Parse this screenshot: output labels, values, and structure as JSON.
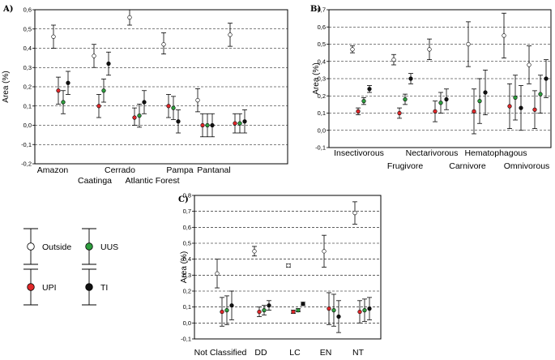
{
  "chart_data": [
    {
      "type": "scatter",
      "panel_label": "A)",
      "ylabel": "Area (%)",
      "ylim": [
        -0.2,
        0.6
      ],
      "yticks": [
        "-0,2",
        "-0,1",
        "0,0",
        "0,1",
        "0,2",
        "0,3",
        "0,4",
        "0,5",
        "0,6"
      ],
      "grid": "horizontal-dashed",
      "categories": [
        "Amazon",
        "Caatinga",
        "Cerrado",
        "Atlantic Forest",
        "Pampa",
        "Pantanal"
      ],
      "series": [
        {
          "name": "Outside",
          "values": [
            0.46,
            0.36,
            0.56,
            0.42,
            0.13,
            0.47
          ],
          "lower": [
            0.4,
            0.3,
            0.52,
            0.37,
            0.07,
            0.41
          ],
          "upper": [
            0.52,
            0.42,
            0.6,
            0.48,
            0.19,
            0.53
          ]
        },
        {
          "name": "UPI",
          "values": [
            0.18,
            0.1,
            0.04,
            0.1,
            0.0,
            0.01
          ],
          "lower": [
            0.11,
            0.04,
            0.0,
            0.04,
            -0.06,
            -0.04
          ],
          "upper": [
            0.25,
            0.16,
            0.09,
            0.16,
            0.06,
            0.06
          ]
        },
        {
          "name": "UUS",
          "values": [
            0.12,
            0.18,
            0.05,
            0.09,
            0.0,
            0.01
          ],
          "lower": [
            0.06,
            0.12,
            -0.01,
            0.03,
            -0.06,
            -0.04
          ],
          "upper": [
            0.18,
            0.24,
            0.11,
            0.15,
            0.06,
            0.06
          ]
        },
        {
          "name": "TI",
          "values": [
            0.22,
            0.32,
            0.12,
            0.02,
            0.0,
            0.02
          ],
          "lower": [
            0.16,
            0.26,
            0.06,
            -0.04,
            -0.06,
            -0.04
          ],
          "upper": [
            0.28,
            0.38,
            0.18,
            0.08,
            0.06,
            0.08
          ]
        }
      ]
    },
    {
      "type": "scatter",
      "panel_label": "B)",
      "ylabel": "Area (%)",
      "ylim": [
        -0.1,
        0.7
      ],
      "yticks": [
        "-0,1",
        "0,0",
        "0,1",
        "0,2",
        "0,3",
        "0,4",
        "0,5",
        "0,6",
        "0,7"
      ],
      "grid": "horizontal-dashed",
      "categories": [
        "Insectivorous",
        "Frugivore",
        "Nectarivorous",
        "Carnivore",
        "Hematophagous",
        "Omnivorous"
      ],
      "series": [
        {
          "name": "Outside",
          "values": [
            0.47,
            0.41,
            0.47,
            0.5,
            0.55,
            0.38
          ],
          "lower": [
            0.45,
            0.38,
            0.41,
            0.37,
            0.42,
            0.27
          ],
          "upper": [
            0.49,
            0.44,
            0.53,
            0.63,
            0.68,
            0.49
          ]
        },
        {
          "name": "UPI",
          "values": [
            0.11,
            0.1,
            0.11,
            0.11,
            0.14,
            0.12
          ],
          "lower": [
            0.09,
            0.07,
            0.05,
            -0.02,
            0.01,
            0.01
          ],
          "upper": [
            0.13,
            0.13,
            0.17,
            0.24,
            0.27,
            0.23
          ]
        },
        {
          "name": "UUS",
          "values": [
            0.17,
            0.18,
            0.16,
            0.17,
            0.19,
            0.21
          ],
          "lower": [
            0.15,
            0.15,
            0.1,
            0.04,
            0.06,
            0.1
          ],
          "upper": [
            0.19,
            0.21,
            0.22,
            0.3,
            0.32,
            0.32
          ]
        },
        {
          "name": "TI",
          "values": [
            0.24,
            0.3,
            0.18,
            0.22,
            0.13,
            0.3
          ],
          "lower": [
            0.22,
            0.27,
            0.12,
            0.09,
            0.0,
            0.19
          ],
          "upper": [
            0.26,
            0.33,
            0.24,
            0.35,
            0.26,
            0.41
          ]
        }
      ]
    },
    {
      "type": "scatter",
      "panel_label": "C)",
      "ylabel": "Area (%)",
      "ylim": [
        -0.1,
        0.8
      ],
      "yticks": [
        "-0,1",
        "0,0",
        "0,1",
        "0,2",
        "0,3",
        "0,4",
        "0,5",
        "0,6",
        "0,7",
        "0,8"
      ],
      "grid": "horizontal-dashed",
      "categories": [
        "Not Classified",
        "DD",
        "LC",
        "EN",
        "NT"
      ],
      "series": [
        {
          "name": "Outside",
          "values": [
            0.31,
            0.45,
            0.36,
            0.45,
            0.69
          ],
          "lower": [
            0.22,
            0.42,
            0.35,
            0.35,
            0.62
          ],
          "upper": [
            0.4,
            0.48,
            0.37,
            0.55,
            0.76
          ]
        },
        {
          "name": "UPI",
          "values": [
            0.07,
            0.07,
            0.07,
            0.09,
            0.07
          ],
          "lower": [
            -0.02,
            0.04,
            0.06,
            -0.01,
            0.0
          ],
          "upper": [
            0.16,
            0.1,
            0.08,
            0.19,
            0.14
          ]
        },
        {
          "name": "UUS",
          "values": [
            0.08,
            0.08,
            0.08,
            0.08,
            0.08
          ],
          "lower": [
            -0.01,
            0.05,
            0.07,
            -0.02,
            0.01
          ],
          "upper": [
            0.17,
            0.11,
            0.09,
            0.18,
            0.15
          ]
        },
        {
          "name": "TI",
          "values": [
            0.11,
            0.11,
            0.12,
            0.04,
            0.09
          ],
          "lower": [
            0.02,
            0.08,
            0.11,
            -0.06,
            0.02
          ],
          "upper": [
            0.2,
            0.14,
            0.13,
            0.14,
            0.16
          ]
        }
      ]
    }
  ],
  "legend": [
    {
      "name": "Outside",
      "color": "#ffffff"
    },
    {
      "name": "UUS",
      "color": "#2e9e3e"
    },
    {
      "name": "UPI",
      "color": "#e0282a"
    },
    {
      "name": "TI",
      "color": "#111111"
    }
  ]
}
